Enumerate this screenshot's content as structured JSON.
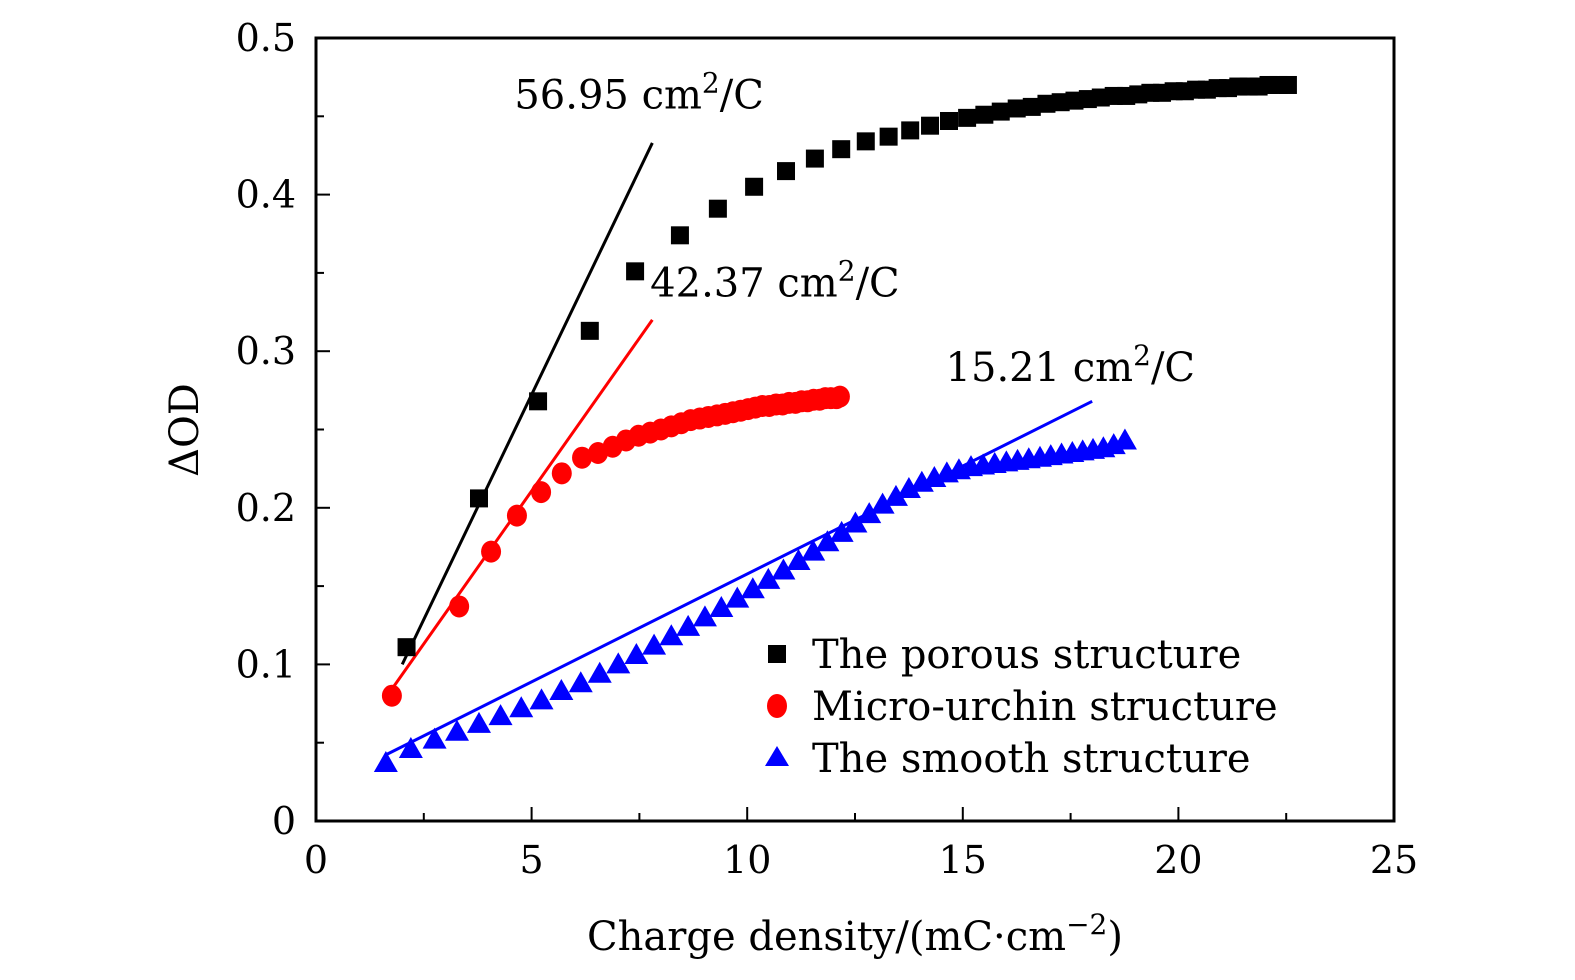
{
  "chart_data": {
    "type": "scatter",
    "title": "",
    "xlabel": "Charge density/(mC·cm",
    "xlabel_sup": "−2",
    "xlabel_close": ")",
    "ylabel": "ΔOD",
    "xlim": [
      0,
      25
    ],
    "ylim": [
      0,
      0.5
    ],
    "x_ticks": [
      0,
      5,
      10,
      15,
      20,
      25
    ],
    "x_tick_labels": [
      "0",
      "5",
      "10",
      "15",
      "20",
      "25"
    ],
    "x_minor_ticks": [
      2.5,
      7.5,
      12.5,
      17.5,
      22.5
    ],
    "y_ticks": [
      0,
      0.1,
      0.2,
      0.3,
      0.4,
      0.5
    ],
    "y_tick_labels": [
      "0",
      "0.1",
      "0.2",
      "0.3",
      "0.4",
      "0.5"
    ],
    "y_minor_ticks": [
      0.05,
      0.15,
      0.25,
      0.35,
      0.45
    ],
    "grid": false,
    "legend_position": "bottom-right",
    "series": [
      {
        "name": "The porous structure",
        "marker": "square",
        "color": "#000000",
        "x": [
          2.1,
          3.78,
          5.15,
          6.35,
          7.4,
          8.44,
          9.32,
          10.16,
          10.9,
          11.57,
          12.18,
          12.75,
          13.28,
          13.78,
          14.24,
          14.68,
          15.1,
          15.5,
          15.88,
          16.25,
          16.6,
          16.94,
          17.27,
          17.59,
          17.9,
          18.2,
          18.5,
          18.79,
          19.07,
          19.35,
          19.62,
          19.89,
          20.15,
          20.41,
          20.66,
          20.91,
          21.15,
          21.39,
          21.63,
          21.86,
          22.09,
          22.32,
          22.54
        ],
        "y": [
          0.111,
          0.206,
          0.268,
          0.313,
          0.351,
          0.374,
          0.391,
          0.405,
          0.415,
          0.423,
          0.429,
          0.434,
          0.437,
          0.441,
          0.444,
          0.447,
          0.449,
          0.451,
          0.453,
          0.455,
          0.456,
          0.458,
          0.459,
          0.46,
          0.461,
          0.462,
          0.463,
          0.463,
          0.464,
          0.465,
          0.465,
          0.466,
          0.466,
          0.467,
          0.467,
          0.468,
          0.468,
          0.469,
          0.469,
          0.469,
          0.47,
          0.47,
          0.47
        ]
      },
      {
        "name": "Micro-urchin structure",
        "marker": "circle",
        "color": "#ff0000",
        "x": [
          1.76,
          3.32,
          4.06,
          4.66,
          5.22,
          5.7,
          6.17,
          6.54,
          6.88,
          7.19,
          7.48,
          7.75,
          8.0,
          8.24,
          8.47,
          8.69,
          8.9,
          9.1,
          9.3,
          9.49,
          9.67,
          9.85,
          10.02,
          10.19,
          10.35,
          10.51,
          10.67,
          10.82,
          10.97,
          11.12,
          11.26,
          11.4,
          11.54,
          11.68,
          11.81,
          11.94,
          12.07,
          12.15
        ],
        "y": [
          0.08,
          0.137,
          0.172,
          0.195,
          0.21,
          0.222,
          0.232,
          0.235,
          0.239,
          0.243,
          0.246,
          0.248,
          0.25,
          0.252,
          0.254,
          0.256,
          0.257,
          0.258,
          0.259,
          0.26,
          0.261,
          0.262,
          0.263,
          0.264,
          0.265,
          0.265,
          0.266,
          0.266,
          0.267,
          0.267,
          0.268,
          0.268,
          0.269,
          0.269,
          0.27,
          0.27,
          0.27,
          0.271
        ]
      },
      {
        "name": "The smooth structure",
        "marker": "triangle",
        "color": "#0000ff",
        "x": [
          1.62,
          2.2,
          2.75,
          3.27,
          3.78,
          4.28,
          4.76,
          5.23,
          5.69,
          6.14,
          6.58,
          7.01,
          7.43,
          7.84,
          8.24,
          8.63,
          9.02,
          9.4,
          9.77,
          10.13,
          10.49,
          10.84,
          11.19,
          11.53,
          11.86,
          12.19,
          12.51,
          12.83,
          13.14,
          13.45,
          13.75,
          14.05,
          14.34,
          14.63,
          14.91,
          15.19,
          15.47,
          15.74,
          16.01,
          16.27,
          16.53,
          16.79,
          17.04,
          17.29,
          17.54,
          17.78,
          18.02,
          18.26,
          18.5,
          18.76
        ],
        "y": [
          0.037,
          0.046,
          0.052,
          0.057,
          0.062,
          0.067,
          0.072,
          0.077,
          0.083,
          0.088,
          0.094,
          0.1,
          0.106,
          0.112,
          0.118,
          0.124,
          0.13,
          0.136,
          0.142,
          0.148,
          0.154,
          0.16,
          0.166,
          0.172,
          0.178,
          0.184,
          0.19,
          0.196,
          0.202,
          0.207,
          0.212,
          0.216,
          0.219,
          0.222,
          0.224,
          0.226,
          0.227,
          0.228,
          0.229,
          0.23,
          0.231,
          0.232,
          0.233,
          0.234,
          0.235,
          0.236,
          0.237,
          0.238,
          0.24,
          0.243
        ]
      }
    ],
    "fit_lines": [
      {
        "series": "The porous structure",
        "color": "#000000",
        "x": [
          2.0,
          7.8
        ],
        "y": [
          0.1,
          0.433
        ],
        "label": "56.95 cm",
        "label_sup": "2",
        "label_tail": "/C",
        "label_at": [
          4.6,
          0.455
        ]
      },
      {
        "series": "Micro-urchin structure",
        "color": "#ff0000",
        "x": [
          1.6,
          7.8
        ],
        "y": [
          0.078,
          0.32
        ],
        "label": "42.37 cm",
        "label_sup": "2",
        "label_tail": "/C",
        "label_at": [
          7.75,
          0.335
        ]
      },
      {
        "series": "The smooth structure",
        "color": "#0000ff",
        "x": [
          1.6,
          18.0
        ],
        "y": [
          0.042,
          0.268
        ],
        "label": "15.21 cm",
        "label_sup": "2",
        "label_tail": "/C",
        "label_at": [
          14.6,
          0.281
        ]
      }
    ]
  }
}
